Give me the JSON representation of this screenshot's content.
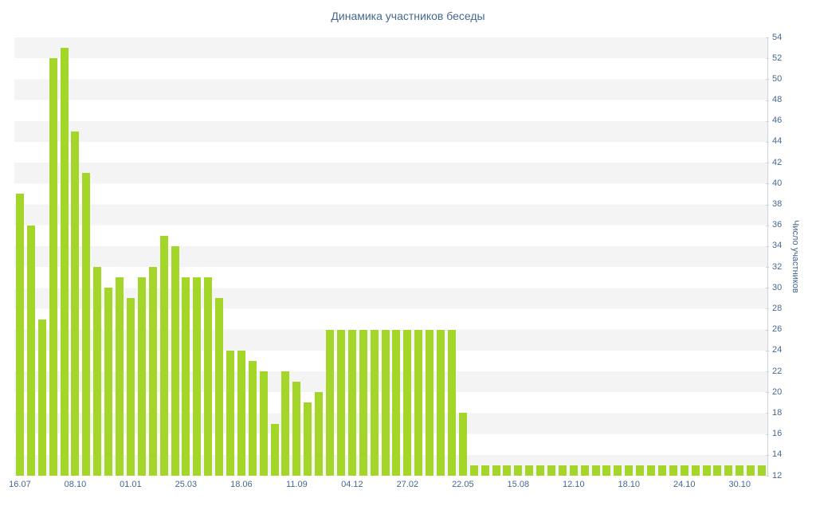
{
  "chart_data": {
    "type": "bar",
    "title": "Динамика участников беседы",
    "ylabel": "Число участников",
    "xlabel": "",
    "ylim": [
      12,
      54
    ],
    "y_tick_step": 2,
    "y_ticks": [
      54,
      52,
      50,
      48,
      46,
      44,
      42,
      40,
      38,
      36,
      34,
      32,
      30,
      28,
      26,
      24,
      22,
      20,
      18,
      16,
      14,
      12
    ],
    "x_tick_labels": [
      "16.07",
      "08.10",
      "01.01",
      "25.03",
      "18.06",
      "11.09",
      "04.12",
      "27.02",
      "22.05",
      "15.08",
      "12.10",
      "18.10",
      "24.10",
      "30.10"
    ],
    "x_tick_every": 5,
    "grid": "striped-horizontal-bands",
    "legend": "none",
    "values": [
      39,
      36,
      27,
      52,
      53,
      45,
      41,
      32,
      30,
      31,
      29,
      31,
      32,
      35,
      34,
      31,
      31,
      31,
      29,
      24,
      24,
      23,
      22,
      17,
      22,
      21,
      19,
      20,
      26,
      26,
      26,
      26,
      26,
      26,
      26,
      26,
      26,
      26,
      26,
      26,
      18,
      13,
      13,
      13,
      13,
      13,
      13,
      13,
      13,
      13,
      13,
      13,
      13,
      13,
      13,
      13,
      13,
      13,
      13,
      13,
      13,
      13,
      13,
      13,
      13,
      13,
      13,
      13
    ]
  },
  "colors": {
    "bar": "#a4d629",
    "label_text": "#45688e",
    "stripe": "#f4f4f4",
    "axis_line": "#ccd4dd",
    "background": "#ffffff"
  }
}
